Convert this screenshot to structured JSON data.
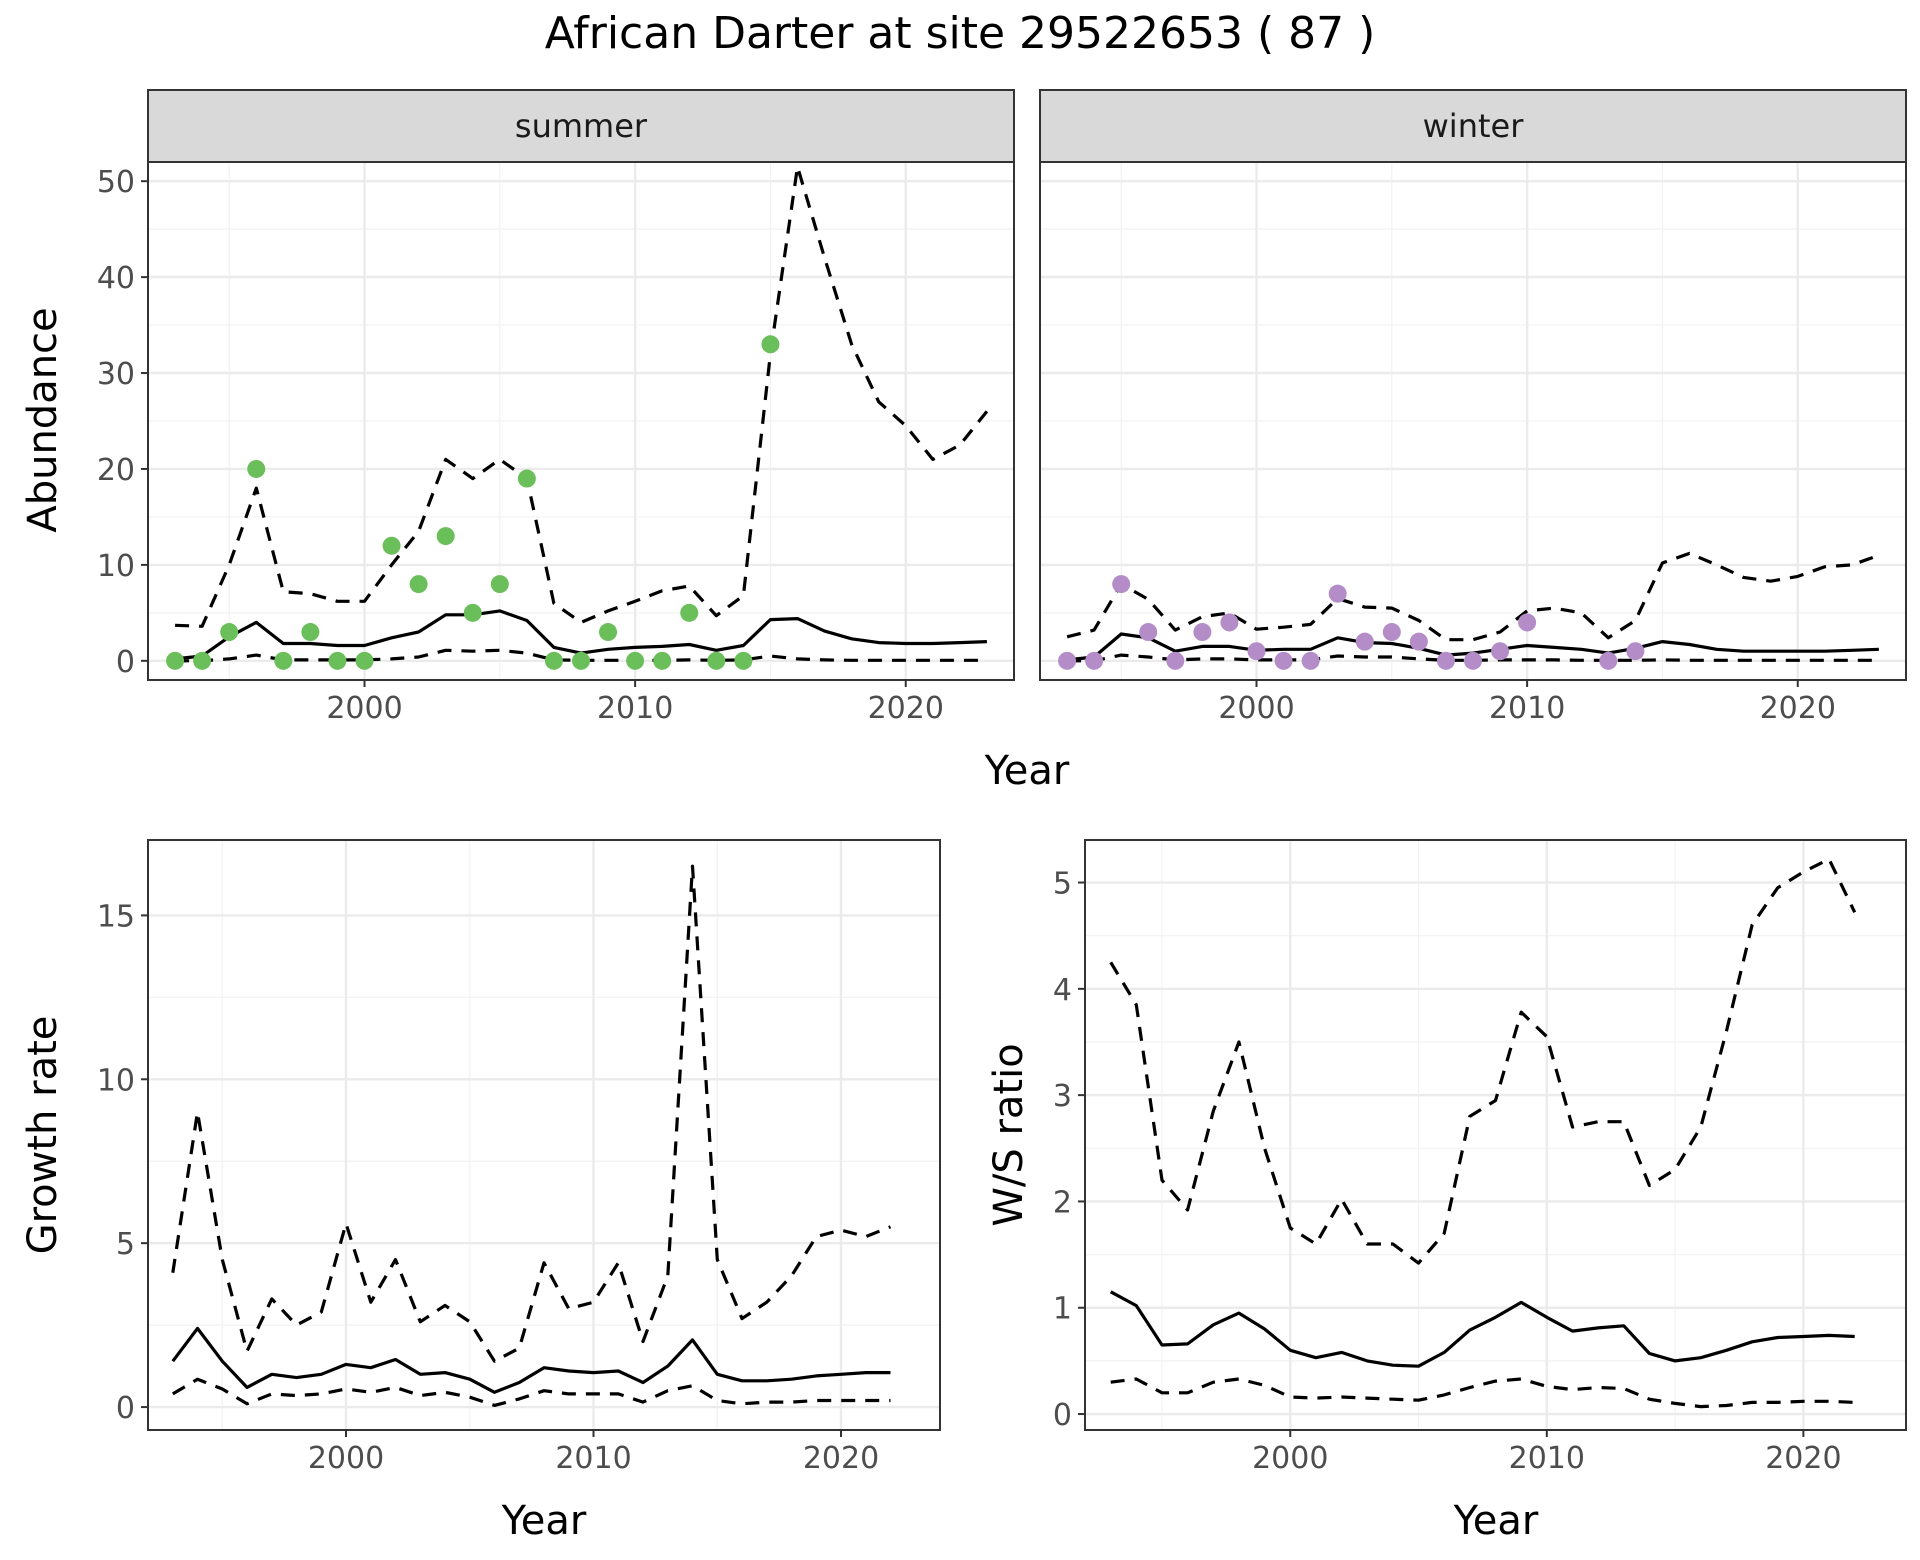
{
  "title": "African Darter at site 29522653 ( 87 )",
  "colors": {
    "summer_points": "#6abf5a",
    "winter_points": "#b48cc8"
  },
  "chart_data": [
    {
      "id": "abundance_summer",
      "type": "line",
      "facet": "summer",
      "xlabel": "Year",
      "ylabel": "Abundance",
      "xlim": [
        1992,
        2024
      ],
      "ylim": [
        -2,
        52
      ],
      "xticks": [
        2000,
        2010,
        2020
      ],
      "yticks": [
        0,
        10,
        20,
        30,
        40,
        50
      ],
      "point_color": "#6abf5a",
      "series": [
        {
          "role": "estimate",
          "x": [
            1993,
            1994,
            1995,
            1996,
            1997,
            1998,
            1999,
            2000,
            2001,
            2002,
            2003,
            2004,
            2005,
            2006,
            2007,
            2008,
            2009,
            2010,
            2011,
            2012,
            2013,
            2014,
            2015,
            2016,
            2017,
            2018,
            2019,
            2020,
            2021,
            2022,
            2023
          ],
          "values": [
            0.2,
            0.5,
            2.5,
            4.0,
            1.8,
            1.8,
            1.6,
            1.6,
            2.4,
            3.0,
            4.8,
            4.8,
            5.2,
            4.2,
            1.4,
            0.8,
            1.2,
            1.4,
            1.5,
            1.7,
            1.1,
            1.6,
            4.3,
            4.4,
            3.1,
            2.3,
            1.9,
            1.8,
            1.8,
            1.9,
            2.0
          ]
        },
        {
          "role": "upper",
          "x": [
            1993,
            1994,
            1995,
            1996,
            1997,
            1998,
            1999,
            2000,
            2001,
            2002,
            2003,
            2004,
            2005,
            2006,
            2007,
            2008,
            2009,
            2010,
            2011,
            2012,
            2013,
            2014,
            2015,
            2016,
            2017,
            2018,
            2019,
            2020,
            2021,
            2022,
            2023
          ],
          "values": [
            3.7,
            3.6,
            10,
            18,
            7.2,
            7.0,
            6.2,
            6.2,
            10,
            13.5,
            21,
            19,
            21,
            19,
            6,
            4,
            5.2,
            6.2,
            7.3,
            7.8,
            4.7,
            6.8,
            32,
            51.5,
            42,
            33,
            27,
            24.5,
            21,
            22.5,
            26
          ]
        },
        {
          "role": "lower",
          "x": [
            1993,
            1994,
            1995,
            1996,
            1997,
            1998,
            1999,
            2000,
            2001,
            2002,
            2003,
            2004,
            2005,
            2006,
            2007,
            2008,
            2009,
            2010,
            2011,
            2012,
            2013,
            2014,
            2015,
            2016,
            2017,
            2018,
            2019,
            2020,
            2021,
            2022,
            2023
          ],
          "values": [
            0,
            0,
            0.2,
            0.6,
            0.1,
            0.1,
            0.1,
            0.1,
            0.2,
            0.4,
            1.1,
            1.0,
            1.1,
            0.8,
            0.1,
            0.05,
            0.05,
            0.05,
            0.05,
            0.1,
            0.05,
            0.1,
            0.5,
            0.2,
            0.1,
            0.05,
            0.05,
            0.05,
            0.05,
            0.05,
            0.05
          ]
        }
      ],
      "points": {
        "x": [
          1993,
          1994,
          1995,
          1996,
          1997,
          1998,
          1999,
          2000,
          2001,
          2002,
          2003,
          2004,
          2005,
          2006,
          2007,
          2008,
          2009,
          2010,
          2011,
          2012,
          2013,
          2014,
          2015
        ],
        "y": [
          0,
          0,
          3,
          20,
          0,
          3,
          0,
          0,
          12,
          8,
          13,
          5,
          8,
          19,
          0,
          0,
          3,
          0,
          0,
          5,
          0,
          0,
          33
        ]
      }
    },
    {
      "id": "abundance_winter",
      "type": "line",
      "facet": "winter",
      "xlabel": "Year",
      "ylabel": "",
      "xlim": [
        1992,
        2024
      ],
      "ylim": [
        -2,
        52
      ],
      "xticks": [
        2000,
        2010,
        2020
      ],
      "yticks": [
        0,
        10,
        20,
        30,
        40,
        50
      ],
      "point_color": "#b48cc8",
      "series": [
        {
          "role": "estimate",
          "x": [
            1993,
            1994,
            1995,
            1996,
            1997,
            1998,
            1999,
            2000,
            2001,
            2002,
            2003,
            2004,
            2005,
            2006,
            2007,
            2008,
            2009,
            2010,
            2011,
            2012,
            2013,
            2014,
            2015,
            2016,
            2017,
            2018,
            2019,
            2020,
            2021,
            2022,
            2023
          ],
          "values": [
            0.1,
            0.4,
            2.8,
            2.4,
            1.0,
            1.5,
            1.5,
            1.1,
            1.2,
            1.2,
            2.4,
            1.9,
            1.8,
            1.3,
            0.6,
            0.8,
            1.2,
            1.6,
            1.4,
            1.2,
            0.8,
            1.3,
            2.0,
            1.7,
            1.2,
            1.0,
            1.0,
            1.0,
            1.0,
            1.1,
            1.2
          ]
        },
        {
          "role": "upper",
          "x": [
            1993,
            1994,
            1995,
            1996,
            1997,
            1998,
            1999,
            2000,
            2001,
            2002,
            2003,
            2004,
            2005,
            2006,
            2007,
            2008,
            2009,
            2010,
            2011,
            2012,
            2013,
            2014,
            2015,
            2016,
            2017,
            2018,
            2019,
            2020,
            2021,
            2022,
            2023
          ],
          "values": [
            2.5,
            3.2,
            8,
            6.4,
            3.2,
            4.6,
            5.0,
            3.3,
            3.5,
            3.8,
            6.5,
            5.6,
            5.5,
            4.2,
            2.2,
            2.2,
            3.0,
            5.2,
            5.5,
            5.0,
            2.4,
            4.2,
            10.2,
            11.2,
            10,
            8.7,
            8.3,
            8.8,
            9.8,
            10,
            11
          ]
        },
        {
          "role": "lower",
          "x": [
            1993,
            1994,
            1995,
            1996,
            1997,
            1998,
            1999,
            2000,
            2001,
            2002,
            2003,
            2004,
            2005,
            2006,
            2007,
            2008,
            2009,
            2010,
            2011,
            2012,
            2013,
            2014,
            2015,
            2016,
            2017,
            2018,
            2019,
            2020,
            2021,
            2022,
            2023
          ],
          "values": [
            0,
            0,
            0.6,
            0.4,
            0.1,
            0.2,
            0.2,
            0.1,
            0.1,
            0.1,
            0.5,
            0.4,
            0.4,
            0.2,
            0.05,
            0.05,
            0.1,
            0.1,
            0.1,
            0.05,
            0.05,
            0.05,
            0.1,
            0.05,
            0.05,
            0.05,
            0.05,
            0.05,
            0.05,
            0.05,
            0.05
          ]
        }
      ],
      "points": {
        "x": [
          1993,
          1994,
          1995,
          1996,
          1997,
          1998,
          1999,
          2000,
          2001,
          2002,
          2003,
          2004,
          2005,
          2006,
          2007,
          2008,
          2009,
          2010,
          2013,
          2014
        ],
        "y": [
          0,
          0,
          8,
          3,
          0,
          3,
          4,
          1,
          0,
          0,
          7,
          2,
          3,
          2,
          0,
          0,
          1,
          4,
          0,
          1
        ]
      }
    },
    {
      "id": "growth_rate",
      "type": "line",
      "xlabel": "Year",
      "ylabel": "Growth rate",
      "xlim": [
        1992,
        2024
      ],
      "ylim": [
        -0.7,
        17.3
      ],
      "xticks": [
        2000,
        2010,
        2020
      ],
      "yticks": [
        0,
        5,
        10,
        15
      ],
      "series": [
        {
          "role": "estimate",
          "x": [
            1993,
            1994,
            1995,
            1996,
            1997,
            1998,
            1999,
            2000,
            2001,
            2002,
            2003,
            2004,
            2005,
            2006,
            2007,
            2008,
            2009,
            2010,
            2011,
            2012,
            2013,
            2014,
            2015,
            2016,
            2017,
            2018,
            2019,
            2020,
            2021,
            2022
          ],
          "values": [
            1.4,
            2.4,
            1.4,
            0.6,
            1.0,
            0.9,
            1.0,
            1.3,
            1.2,
            1.45,
            1.0,
            1.05,
            0.85,
            0.45,
            0.75,
            1.2,
            1.1,
            1.05,
            1.1,
            0.75,
            1.25,
            2.05,
            1.0,
            0.8,
            0.8,
            0.85,
            0.95,
            1.0,
            1.05,
            1.05
          ]
        },
        {
          "role": "upper",
          "x": [
            1993,
            1994,
            1995,
            1996,
            1997,
            1998,
            1999,
            2000,
            2001,
            2002,
            2003,
            2004,
            2005,
            2006,
            2007,
            2008,
            2009,
            2010,
            2011,
            2012,
            2013,
            2014,
            2015,
            2016,
            2017,
            2018,
            2019,
            2020,
            2021,
            2022
          ],
          "values": [
            4.1,
            9.0,
            4.5,
            1.7,
            3.3,
            2.5,
            2.9,
            5.6,
            3.2,
            4.5,
            2.6,
            3.1,
            2.6,
            1.4,
            1.8,
            4.4,
            3.0,
            3.2,
            4.4,
            2.0,
            4.0,
            16.5,
            4.5,
            2.7,
            3.2,
            4.0,
            5.2,
            5.4,
            5.2,
            5.5
          ]
        },
        {
          "role": "lower",
          "x": [
            1993,
            1994,
            1995,
            1996,
            1997,
            1998,
            1999,
            2000,
            2001,
            2002,
            2003,
            2004,
            2005,
            2006,
            2007,
            2008,
            2009,
            2010,
            2011,
            2012,
            2013,
            2014,
            2015,
            2016,
            2017,
            2018,
            2019,
            2020,
            2021,
            2022
          ],
          "values": [
            0.4,
            0.85,
            0.55,
            0.1,
            0.4,
            0.35,
            0.4,
            0.55,
            0.45,
            0.6,
            0.35,
            0.45,
            0.3,
            0.05,
            0.25,
            0.5,
            0.4,
            0.4,
            0.4,
            0.15,
            0.5,
            0.65,
            0.2,
            0.1,
            0.15,
            0.15,
            0.2,
            0.2,
            0.2,
            0.2
          ]
        }
      ]
    },
    {
      "id": "ws_ratio",
      "type": "line",
      "xlabel": "Year",
      "ylabel": "W/S ratio",
      "xlim": [
        1992,
        2024
      ],
      "ylim": [
        -0.15,
        5.4
      ],
      "xticks": [
        2000,
        2010,
        2020
      ],
      "yticks": [
        0,
        1,
        2,
        3,
        4,
        5
      ],
      "series": [
        {
          "role": "estimate",
          "x": [
            1993,
            1994,
            1995,
            1996,
            1997,
            1998,
            1999,
            2000,
            2001,
            2002,
            2003,
            2004,
            2005,
            2006,
            2007,
            2008,
            2009,
            2010,
            2011,
            2012,
            2013,
            2014,
            2015,
            2016,
            2017,
            2018,
            2019,
            2020,
            2021,
            2022
          ],
          "values": [
            1.15,
            1.02,
            0.65,
            0.66,
            0.84,
            0.95,
            0.8,
            0.6,
            0.53,
            0.58,
            0.5,
            0.46,
            0.45,
            0.58,
            0.79,
            0.91,
            1.05,
            0.91,
            0.78,
            0.81,
            0.83,
            0.57,
            0.5,
            0.53,
            0.6,
            0.68,
            0.72,
            0.73,
            0.74,
            0.73
          ]
        },
        {
          "role": "upper",
          "x": [
            1993,
            1994,
            1995,
            1996,
            1997,
            1998,
            1999,
            2000,
            2001,
            2002,
            2003,
            2004,
            2005,
            2006,
            2007,
            2008,
            2009,
            2010,
            2011,
            2012,
            2013,
            2014,
            2015,
            2016,
            2017,
            2018,
            2019,
            2020,
            2021,
            2022
          ],
          "values": [
            4.25,
            3.85,
            2.2,
            1.92,
            2.85,
            3.5,
            2.5,
            1.75,
            1.6,
            2.02,
            1.6,
            1.6,
            1.42,
            1.7,
            2.8,
            2.95,
            3.78,
            3.55,
            2.7,
            2.75,
            2.75,
            2.15,
            2.3,
            2.7,
            3.6,
            4.6,
            4.95,
            5.1,
            5.22,
            4.72
          ]
        },
        {
          "role": "lower",
          "x": [
            1993,
            1994,
            1995,
            1996,
            1997,
            1998,
            1999,
            2000,
            2001,
            2002,
            2003,
            2004,
            2005,
            2006,
            2007,
            2008,
            2009,
            2010,
            2011,
            2012,
            2013,
            2014,
            2015,
            2016,
            2017,
            2018,
            2019,
            2020,
            2021,
            2022
          ],
          "values": [
            0.3,
            0.33,
            0.2,
            0.2,
            0.3,
            0.33,
            0.27,
            0.16,
            0.15,
            0.16,
            0.15,
            0.14,
            0.13,
            0.18,
            0.25,
            0.31,
            0.33,
            0.26,
            0.23,
            0.25,
            0.24,
            0.14,
            0.1,
            0.07,
            0.08,
            0.11,
            0.11,
            0.12,
            0.12,
            0.11
          ]
        }
      ]
    }
  ]
}
